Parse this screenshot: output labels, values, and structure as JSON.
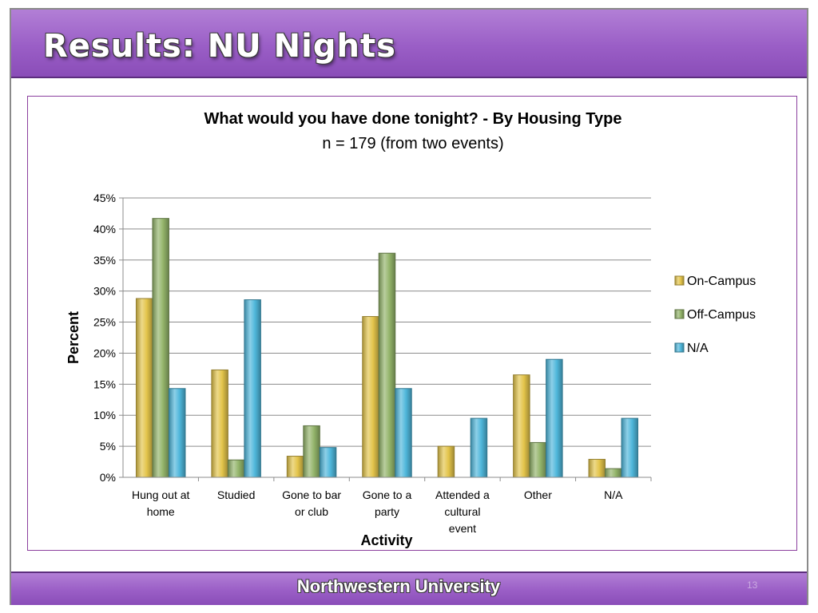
{
  "slide": {
    "title": "Results: NU Nights",
    "footer": "Northwestern University",
    "page_number": "13"
  },
  "chart_data": {
    "type": "bar",
    "title": "What would you have done tonight? -  By Housing Type",
    "subtitle": "n = 179 (from two events)",
    "xlabel": "Activity",
    "ylabel": "Percent",
    "ylim": [
      0,
      45
    ],
    "y_ticks": [
      "0%",
      "5%",
      "10%",
      "15%",
      "20%",
      "25%",
      "30%",
      "35%",
      "40%",
      "45%"
    ],
    "grid": true,
    "legend_position": "right",
    "categories": [
      [
        "Hung out at",
        "home"
      ],
      [
        "Studied"
      ],
      [
        "Gone to bar",
        "or club"
      ],
      [
        "Gone to a",
        "party"
      ],
      [
        "Attended a",
        "cultural",
        "event"
      ],
      [
        "Other"
      ],
      [
        "N/A"
      ]
    ],
    "series": [
      {
        "name": "On-Campus",
        "color": "#e3c44a",
        "values": [
          28.8,
          17.3,
          3.4,
          25.9,
          5.0,
          16.5,
          2.9
        ]
      },
      {
        "name": "Off-Campus",
        "color": "#93b46a",
        "values": [
          41.7,
          2.8,
          8.3,
          36.1,
          0,
          5.6,
          1.4
        ]
      },
      {
        "name": "N/A",
        "color": "#4fb7db",
        "values": [
          14.3,
          28.6,
          4.8,
          14.3,
          9.5,
          19.0,
          9.5
        ]
      }
    ]
  }
}
